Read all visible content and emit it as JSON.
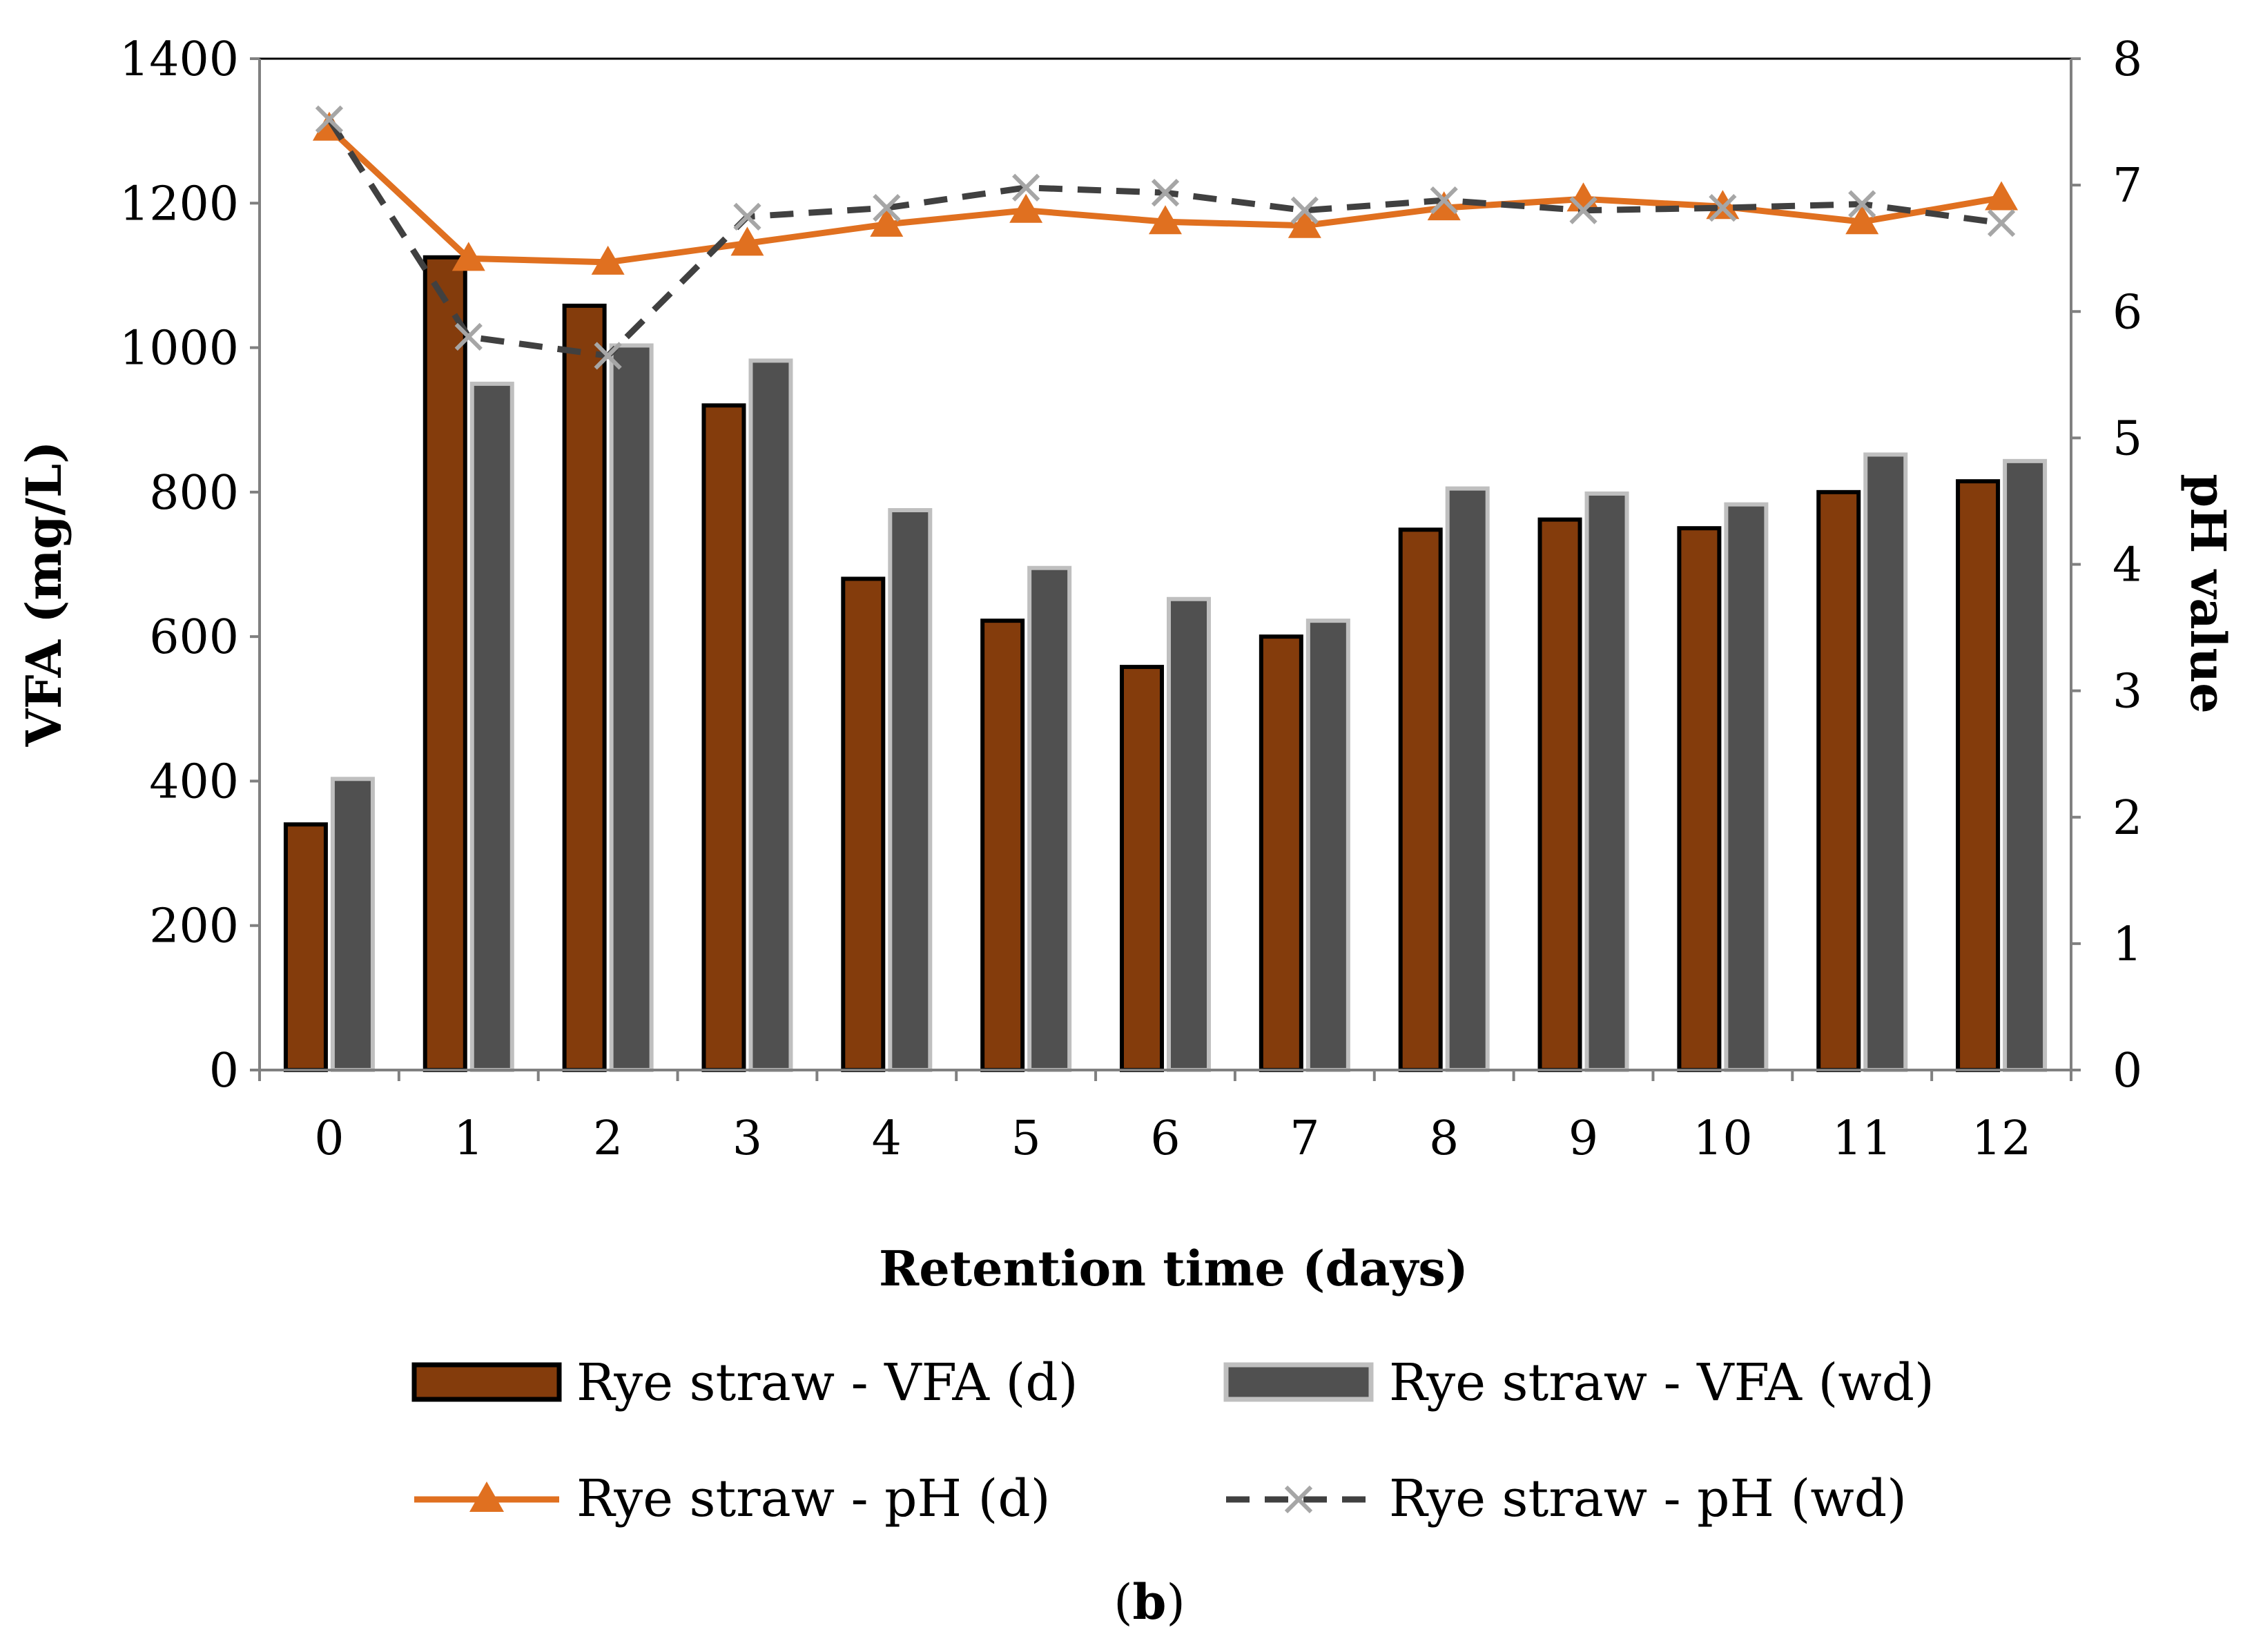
{
  "chart_data": {
    "type": "bar",
    "panel_label_prefix": "(",
    "panel_label_letter": "b",
    "panel_label_suffix": ")",
    "xlabel": "Retention time (days)",
    "ylabel": "VFA (mg/L)",
    "y2label": "pH value",
    "categories": [
      "0",
      "1",
      "2",
      "3",
      "4",
      "5",
      "6",
      "7",
      "8",
      "9",
      "10",
      "11",
      "12"
    ],
    "ylim": [
      0,
      1400
    ],
    "yticks": [
      0,
      200,
      400,
      600,
      800,
      1000,
      1200,
      1400
    ],
    "y2lim": [
      0,
      8
    ],
    "y2ticks": [
      0,
      1,
      2,
      3,
      4,
      5,
      6,
      7,
      8
    ],
    "legend_position": "bottom",
    "series": [
      {
        "name": "Rye straw - VFA (d)",
        "kind": "bar",
        "axis": "left",
        "color": "#843C0C",
        "stroke": "#000000",
        "values": [
          340,
          1125,
          1058,
          920,
          680,
          622,
          558,
          600,
          748,
          762,
          750,
          800,
          815
        ]
      },
      {
        "name": "Rye straw - VFA (wd)",
        "kind": "bar",
        "axis": "left",
        "color": "#505050",
        "stroke": "#BFBFBF",
        "values": [
          403,
          950,
          1003,
          982,
          775,
          695,
          652,
          622,
          805,
          798,
          783,
          852,
          843
        ]
      },
      {
        "name": "Rye straw - pH (d)",
        "kind": "line",
        "axis": "right",
        "color": "#E07020",
        "marker": "triangle",
        "values": [
          7.45,
          6.42,
          6.39,
          6.54,
          6.69,
          6.8,
          6.71,
          6.68,
          6.82,
          6.89,
          6.83,
          6.71,
          6.9
        ]
      },
      {
        "name": "Rye straw - pH (wd)",
        "kind": "line",
        "axis": "right",
        "color": "#404040",
        "marker": "x",
        "marker_color": "#A6A6A6",
        "dash": true,
        "values": [
          7.52,
          5.8,
          5.65,
          6.75,
          6.82,
          6.98,
          6.94,
          6.8,
          6.88,
          6.8,
          6.82,
          6.85,
          6.7
        ]
      }
    ]
  }
}
